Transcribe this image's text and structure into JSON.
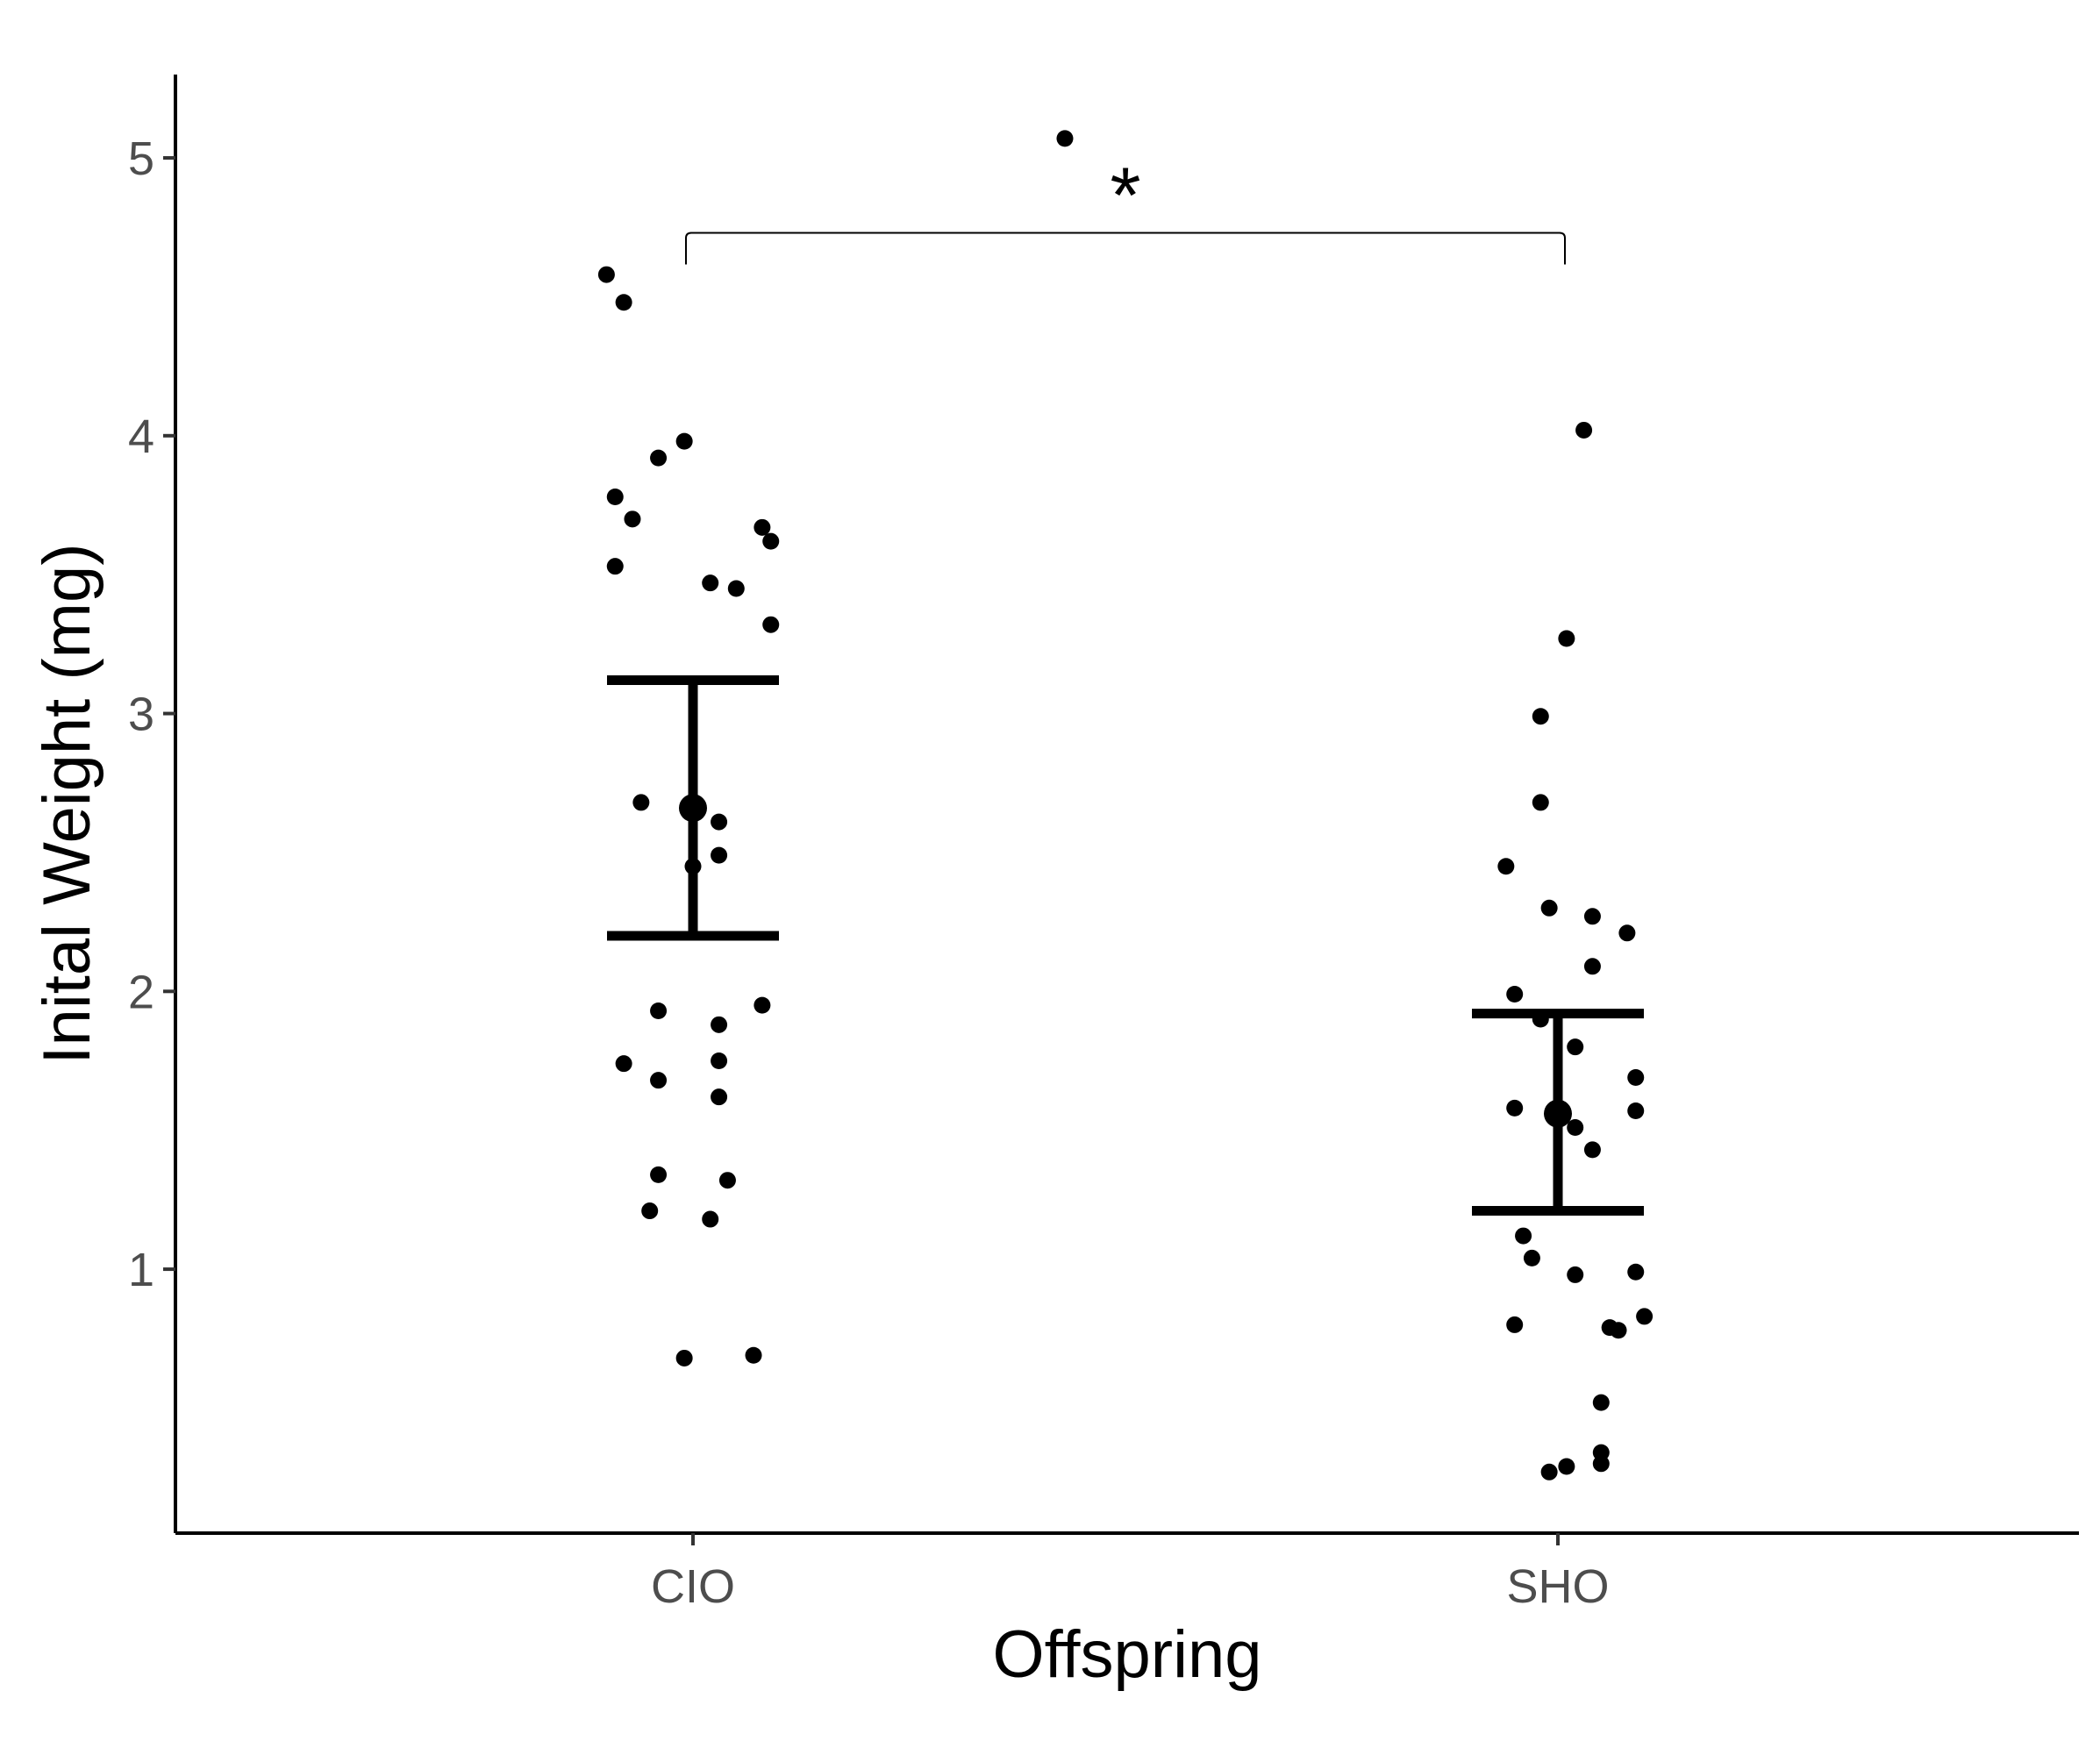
{
  "chart_data": {
    "type": "scatter",
    "title": "",
    "xlabel": "Offspring",
    "ylabel": "Inital Weight (mg)",
    "categories": [
      "CIO",
      "SHO"
    ],
    "ylim": [
      0.05,
      5.3
    ],
    "yticks": [
      1,
      2,
      3,
      4,
      5
    ],
    "grid": false,
    "legend": "none",
    "series": [
      {
        "category": "CIO",
        "mean": 2.66,
        "error_low": 2.2,
        "error_high": 3.12,
        "points": [
          {
            "x": 0.43,
            "y": 5.07
          },
          {
            "x": -0.1,
            "y": 4.58
          },
          {
            "x": -0.08,
            "y": 4.48
          },
          {
            "x": -0.04,
            "y": 3.92
          },
          {
            "x": -0.01,
            "y": 3.98
          },
          {
            "x": -0.09,
            "y": 3.78
          },
          {
            "x": -0.07,
            "y": 3.7
          },
          {
            "x": -0.09,
            "y": 3.53
          },
          {
            "x": 0.08,
            "y": 3.67
          },
          {
            "x": 0.09,
            "y": 3.62
          },
          {
            "x": 0.02,
            "y": 3.47
          },
          {
            "x": 0.05,
            "y": 3.45
          },
          {
            "x": 0.09,
            "y": 3.32
          },
          {
            "x": -0.06,
            "y": 2.68
          },
          {
            "x": 0.03,
            "y": 2.61
          },
          {
            "x": 0.0,
            "y": 2.45
          },
          {
            "x": 0.03,
            "y": 2.49
          },
          {
            "x": -0.04,
            "y": 1.93
          },
          {
            "x": 0.08,
            "y": 1.95
          },
          {
            "x": 0.03,
            "y": 1.88
          },
          {
            "x": -0.08,
            "y": 1.74
          },
          {
            "x": 0.03,
            "y": 1.75
          },
          {
            "x": -0.04,
            "y": 1.68
          },
          {
            "x": 0.03,
            "y": 1.62
          },
          {
            "x": -0.04,
            "y": 1.34
          },
          {
            "x": 0.04,
            "y": 1.32
          },
          {
            "x": -0.05,
            "y": 1.21
          },
          {
            "x": 0.02,
            "y": 1.18
          },
          {
            "x": -0.01,
            "y": 0.68
          },
          {
            "x": 0.07,
            "y": 0.69
          }
        ]
      },
      {
        "category": "SHO",
        "mean": 1.56,
        "error_low": 1.21,
        "error_high": 1.92,
        "points": [
          {
            "x": 0.03,
            "y": 4.02
          },
          {
            "x": 0.01,
            "y": 3.27
          },
          {
            "x": -0.02,
            "y": 2.99
          },
          {
            "x": -0.02,
            "y": 2.68
          },
          {
            "x": -0.06,
            "y": 2.45
          },
          {
            "x": -0.01,
            "y": 2.3
          },
          {
            "x": 0.04,
            "y": 2.27
          },
          {
            "x": 0.08,
            "y": 2.21
          },
          {
            "x": 0.04,
            "y": 2.09
          },
          {
            "x": -0.05,
            "y": 1.99
          },
          {
            "x": -0.02,
            "y": 1.9
          },
          {
            "x": 0.02,
            "y": 1.8
          },
          {
            "x": 0.09,
            "y": 1.69
          },
          {
            "x": -0.05,
            "y": 1.58
          },
          {
            "x": 0.09,
            "y": 1.57
          },
          {
            "x": 0.02,
            "y": 1.51
          },
          {
            "x": 0.04,
            "y": 1.43
          },
          {
            "x": -0.04,
            "y": 1.12
          },
          {
            "x": -0.03,
            "y": 1.04
          },
          {
            "x": 0.02,
            "y": 0.98
          },
          {
            "x": 0.09,
            "y": 0.99
          },
          {
            "x": -0.05,
            "y": 0.8
          },
          {
            "x": 0.06,
            "y": 0.79
          },
          {
            "x": 0.07,
            "y": 0.78
          },
          {
            "x": 0.1,
            "y": 0.83
          },
          {
            "x": 0.05,
            "y": 0.52
          },
          {
            "x": -0.01,
            "y": 0.27
          },
          {
            "x": 0.01,
            "y": 0.29
          },
          {
            "x": 0.05,
            "y": 0.3
          },
          {
            "x": 0.05,
            "y": 0.34
          }
        ]
      }
    ],
    "annotations": [
      {
        "type": "significance-bracket",
        "from": "CIO",
        "to": "SHO",
        "y": 4.73,
        "label": "*"
      }
    ]
  }
}
